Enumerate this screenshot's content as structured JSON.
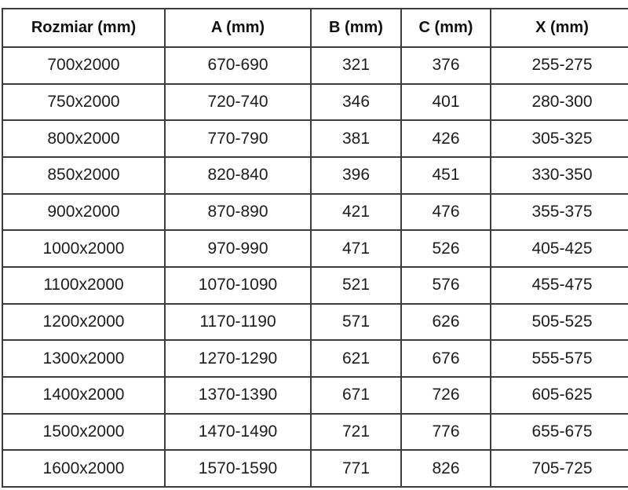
{
  "table": {
    "headers": [
      "Rozmiar (mm)",
      "A (mm)",
      "B (mm)",
      "C (mm)",
      "X (mm)"
    ],
    "rows": [
      [
        "700x2000",
        "670-690",
        "321",
        "376",
        "255-275"
      ],
      [
        "750x2000",
        "720-740",
        "346",
        "401",
        "280-300"
      ],
      [
        "800x2000",
        "770-790",
        "381",
        "426",
        "305-325"
      ],
      [
        "850x2000",
        "820-840",
        "396",
        "451",
        "330-350"
      ],
      [
        "900x2000",
        "870-890",
        "421",
        "476",
        "355-375"
      ],
      [
        "1000x2000",
        "970-990",
        "471",
        "526",
        "405-425"
      ],
      [
        "1100x2000",
        "1070-1090",
        "521",
        "576",
        "455-475"
      ],
      [
        "1200x2000",
        "1170-1190",
        "571",
        "626",
        "505-525"
      ],
      [
        "1300x2000",
        "1270-1290",
        "621",
        "676",
        "555-575"
      ],
      [
        "1400x2000",
        "1370-1390",
        "671",
        "726",
        "605-625"
      ],
      [
        "1500x2000",
        "1470-1490",
        "721",
        "776",
        "655-675"
      ],
      [
        "1600x2000",
        "1570-1590",
        "771",
        "826",
        "705-725"
      ]
    ],
    "colors": {
      "border": "#3d3d3d",
      "text": "#1c1c1c",
      "background": "#ffffff"
    }
  }
}
